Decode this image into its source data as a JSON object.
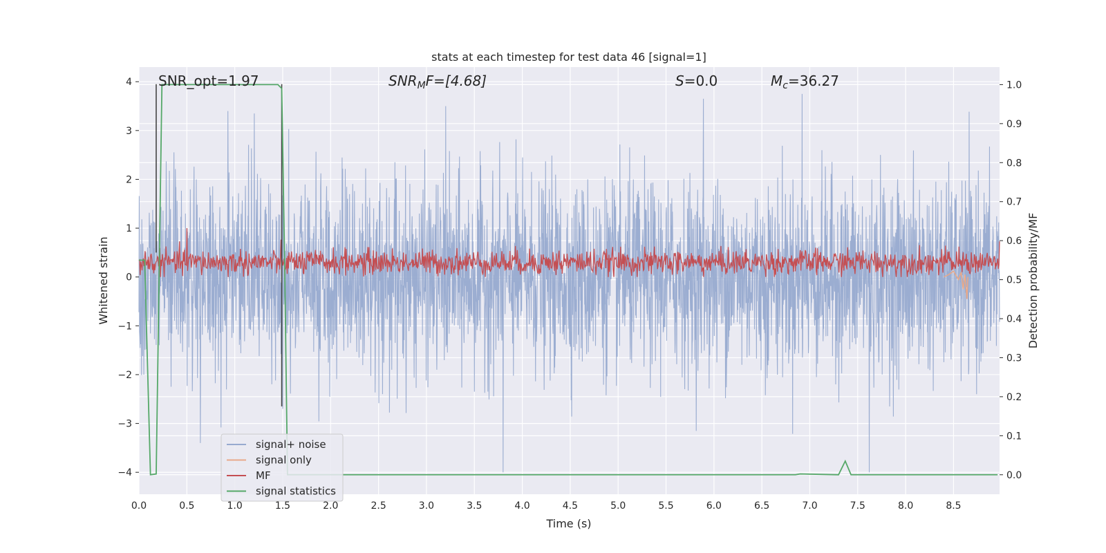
{
  "chart_data": {
    "type": "line",
    "title": "stats at each timestep for test data 46 [signal=1]",
    "xlabel": "Time (s)",
    "ylabel": "Whitened strain",
    "ylabel_right": "Detection probability/MF",
    "xlim": [
      0.0,
      8.98
    ],
    "ylim": [
      -4.45,
      4.3
    ],
    "ylim_right": [
      -0.05,
      1.045
    ],
    "x_ticks": [
      "0.0",
      "0.5",
      "1.0",
      "1.5",
      "2.0",
      "2.5",
      "3.0",
      "3.5",
      "4.0",
      "4.5",
      "5.0",
      "5.5",
      "6.0",
      "6.5",
      "7.0",
      "7.5",
      "8.0",
      "8.5"
    ],
    "y_ticks": [
      "−4",
      "−3",
      "−2",
      "−1",
      "0",
      "1",
      "2",
      "3",
      "4"
    ],
    "y_ticks_right": [
      "0.0",
      "0.1",
      "0.2",
      "0.3",
      "0.4",
      "0.5",
      "0.6",
      "0.7",
      "0.8",
      "0.9",
      "1.0"
    ],
    "annotations": {
      "snr_opt": "SNR_opt=1.97",
      "snr_mf_prefix": "SNR",
      "snr_mf_sub": "M",
      "snr_mf_rest": "F=[4.68]",
      "s_var": "S",
      "s_rest": "=0.0",
      "mc_var": "M",
      "mc_sub": "c",
      "mc_rest": "=36.27"
    },
    "grid": true,
    "legend": {
      "placement": "lower-left",
      "entries": [
        {
          "label": "signal+ noise",
          "color": "#97aacf"
        },
        {
          "label": "signal only",
          "color": "#e8a98a"
        },
        {
          "label": "MF",
          "color": "#c44e52"
        },
        {
          "label": "signal statistics",
          "color": "#55a868"
        }
      ]
    },
    "series": [
      {
        "name": "signal+ noise",
        "axis": "left",
        "color": "#97aacf",
        "x_range": [
          0.0,
          8.98
        ],
        "y_range_typical": [
          -2.5,
          2.5
        ],
        "peaks": [
          [
            3.8,
            -4.0
          ],
          [
            5.89,
            3.65
          ],
          [
            6.92,
            3.75
          ],
          [
            7.62,
            -4.0
          ],
          [
            3.2,
            3.5
          ],
          [
            1.5,
            -2.7
          ]
        ]
      },
      {
        "name": "MF",
        "axis": "left",
        "color": "#c44e52",
        "x_range": [
          0.0,
          8.98
        ],
        "y_range_typical": [
          0.0,
          0.6
        ],
        "peaks": [
          [
            0.5,
            1.0
          ]
        ]
      },
      {
        "name": "signal only",
        "axis": "left",
        "color": "#e8a98a",
        "x": [
          8.4,
          8.45,
          8.5,
          8.55,
          8.58,
          8.6,
          8.62,
          8.64,
          8.65
        ],
        "y": [
          0.0,
          0.05,
          0.12,
          -0.05,
          0.1,
          -0.25,
          0.05,
          -0.45,
          0.0
        ]
      },
      {
        "name": "signal statistics",
        "axis": "right",
        "color": "#55a868",
        "x": [
          0.0,
          0.06,
          0.12,
          0.18,
          0.24,
          0.3,
          1.45,
          1.49,
          1.52,
          1.55,
          1.6,
          6.85,
          6.9,
          7.3,
          7.37,
          7.43,
          8.96
        ],
        "y": [
          0.55,
          0.55,
          0.0,
          0.002,
          1.0,
          1.0,
          1.0,
          0.99,
          0.55,
          0.0,
          0.0,
          0.0,
          0.002,
          0.0,
          0.035,
          0.0,
          0.0
        ]
      }
    ],
    "markers_black": [
      {
        "x": 0.18,
        "y_top": 3.95,
        "y_bottom": 0.5
      },
      {
        "x": 1.49,
        "y_top": 3.95,
        "y_bottom": -2.65
      }
    ]
  }
}
